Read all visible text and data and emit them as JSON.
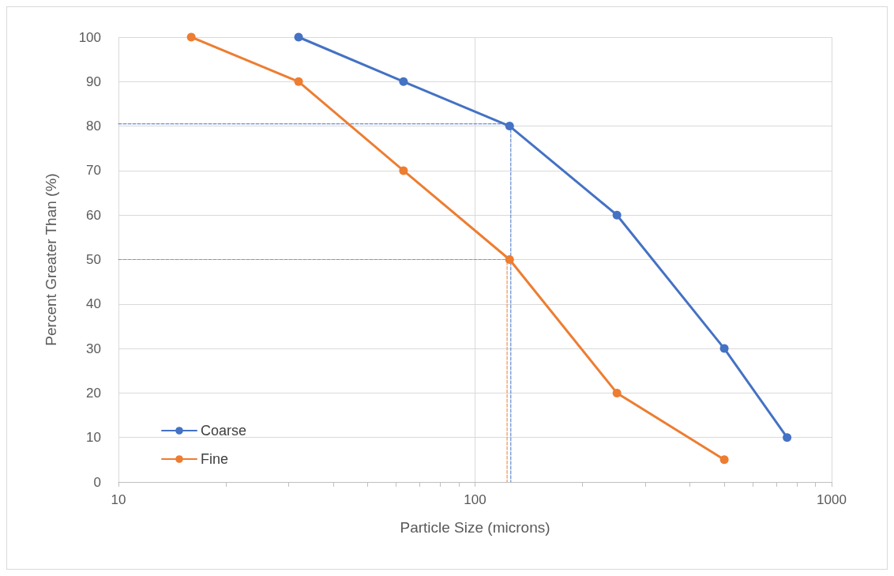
{
  "chart_data": {
    "type": "line",
    "xlabel": "Particle Size (microns)",
    "ylabel": "Percent Greater Than (%)",
    "log": "x",
    "xlim": [
      10,
      1000
    ],
    "ylim": [
      0,
      100
    ],
    "xticks": [
      10,
      {
        "value": 20,
        "label": null
      },
      {
        "value": 30,
        "label": null
      },
      {
        "value": 40,
        "label": null
      },
      {
        "value": 50,
        "label": null
      },
      {
        "value": 60,
        "label": null
      },
      {
        "value": 70,
        "label": null
      },
      {
        "value": 80,
        "label": null
      },
      {
        "value": 90,
        "label": null
      },
      100,
      {
        "value": 200,
        "label": null
      },
      {
        "value": 300,
        "label": null
      },
      {
        "value": 400,
        "label": null
      },
      {
        "value": 500,
        "label": null
      },
      {
        "value": 600,
        "label": null
      },
      {
        "value": 700,
        "label": null
      },
      {
        "value": 800,
        "label": null
      },
      {
        "value": 900,
        "label": null
      },
      1000
    ],
    "yticks": [
      0,
      10,
      20,
      30,
      40,
      50,
      60,
      70,
      80,
      90,
      100
    ],
    "grid": true,
    "legend": "bottom left",
    "marker": "circle",
    "line_style": "solid",
    "series": [
      {
        "name": "Coarse",
        "color": "#4472c4",
        "x": [
          32,
          63,
          125,
          250,
          500,
          750
        ],
        "values": [
          100,
          90,
          80,
          60,
          30,
          10
        ]
      },
      {
        "name": "Fine",
        "color": "#ed7d31",
        "x": [
          16,
          32,
          63,
          125,
          250,
          500
        ],
        "values": [
          100,
          90,
          70,
          50,
          20,
          5
        ]
      },
      {
        "color": "#4472c4",
        "x": [
          10,
          126,
          126
        ],
        "values": [
          80.5,
          80.5,
          0
        ],
        "marker": "none",
        "line_style": "dashed"
      },
      {
        "color": "#ed7d31",
        "x": [
          10,
          124,
          123,
          123
        ],
        "values": [
          50,
          50,
          50,
          0
        ],
        "marker": "none",
        "line_style": "dashed"
      }
    ]
  }
}
